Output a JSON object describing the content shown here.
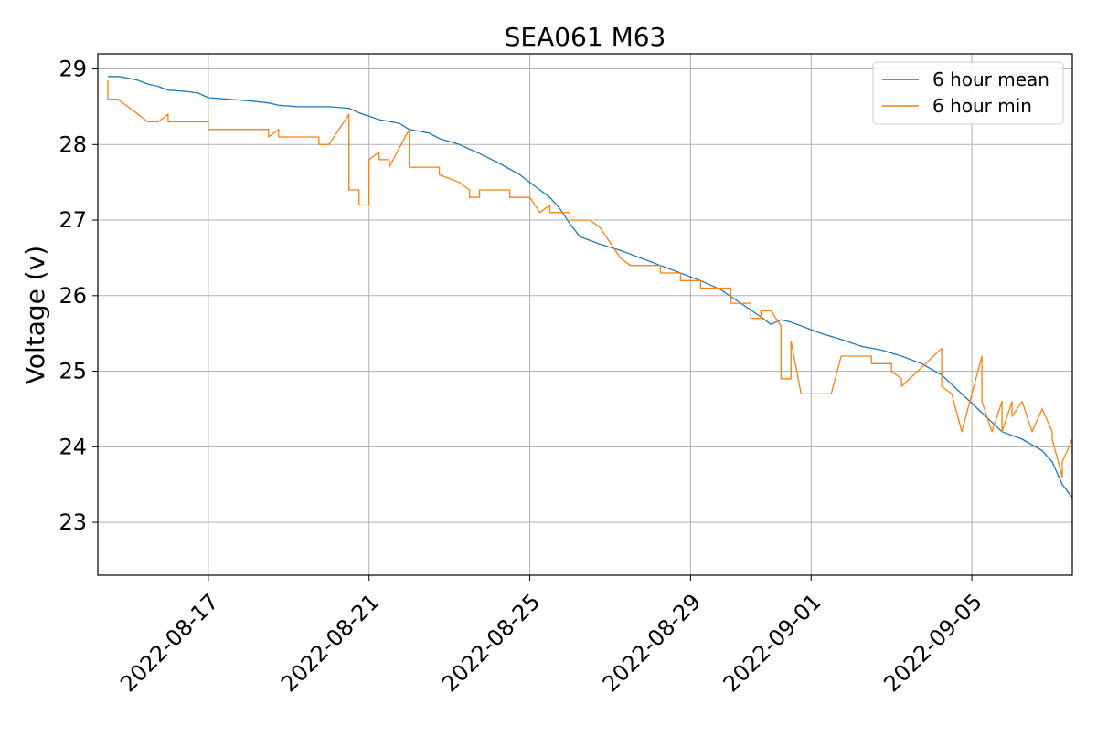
{
  "chart_data": {
    "type": "line",
    "title": "SEA061 M63",
    "xlabel": "",
    "ylabel": "Voltage (v)",
    "x_axis": "date",
    "xlim": [
      "2022-08-14T06:00",
      "2022-09-07T12:00"
    ],
    "ylim": [
      22.3,
      29.2
    ],
    "x_ticks": [
      "2022-08-17",
      "2022-08-21",
      "2022-08-25",
      "2022-08-29",
      "2022-09-01",
      "2022-09-05"
    ],
    "y_ticks": [
      23,
      24,
      25,
      26,
      27,
      28,
      29
    ],
    "grid": true,
    "legend_position": "top-right",
    "series": [
      {
        "name": "6 hour mean",
        "color": "#1f77b4",
        "points": [
          [
            "2022-08-14T12:00",
            28.9
          ],
          [
            "2022-08-14T18:00",
            28.9
          ],
          [
            "2022-08-15T00:00",
            28.88
          ],
          [
            "2022-08-15T06:00",
            28.85
          ],
          [
            "2022-08-15T12:00",
            28.8
          ],
          [
            "2022-08-15T18:00",
            28.77
          ],
          [
            "2022-08-16T00:00",
            28.72
          ],
          [
            "2022-08-16T12:00",
            28.7
          ],
          [
            "2022-08-16T18:00",
            28.68
          ],
          [
            "2022-08-17T00:00",
            28.62
          ],
          [
            "2022-08-17T12:00",
            28.6
          ],
          [
            "2022-08-18T00:00",
            28.58
          ],
          [
            "2022-08-18T12:00",
            28.55
          ],
          [
            "2022-08-18T18:00",
            28.52
          ],
          [
            "2022-08-19T06:00",
            28.5
          ],
          [
            "2022-08-20T00:00",
            28.5
          ],
          [
            "2022-08-20T12:00",
            28.48
          ],
          [
            "2022-08-20T18:00",
            28.42
          ],
          [
            "2022-08-21T06:00",
            28.33
          ],
          [
            "2022-08-21T18:00",
            28.28
          ],
          [
            "2022-08-22T00:00",
            28.2
          ],
          [
            "2022-08-22T12:00",
            28.15
          ],
          [
            "2022-08-22T18:00",
            28.08
          ],
          [
            "2022-08-23T06:00",
            28.0
          ],
          [
            "2022-08-23T18:00",
            27.88
          ],
          [
            "2022-08-24T06:00",
            27.75
          ],
          [
            "2022-08-24T18:00",
            27.6
          ],
          [
            "2022-08-25T06:00",
            27.4
          ],
          [
            "2022-08-25T12:00",
            27.3
          ],
          [
            "2022-08-25T18:00",
            27.15
          ],
          [
            "2022-08-26T00:00",
            26.95
          ],
          [
            "2022-08-26T06:00",
            26.78
          ],
          [
            "2022-08-26T18:00",
            26.68
          ],
          [
            "2022-08-27T06:00",
            26.6
          ],
          [
            "2022-08-27T18:00",
            26.5
          ],
          [
            "2022-08-28T06:00",
            26.4
          ],
          [
            "2022-08-28T18:00",
            26.3
          ],
          [
            "2022-08-29T06:00",
            26.2
          ],
          [
            "2022-08-29T18:00",
            26.08
          ],
          [
            "2022-08-30T06:00",
            25.9
          ],
          [
            "2022-08-30T18:00",
            25.72
          ],
          [
            "2022-08-31T00:00",
            25.62
          ],
          [
            "2022-08-31T06:00",
            25.68
          ],
          [
            "2022-08-31T12:00",
            25.65
          ],
          [
            "2022-08-31T18:00",
            25.6
          ],
          [
            "2022-09-01T06:00",
            25.5
          ],
          [
            "2022-09-01T18:00",
            25.42
          ],
          [
            "2022-09-02T06:00",
            25.33
          ],
          [
            "2022-09-02T18:00",
            25.28
          ],
          [
            "2022-09-03T06:00",
            25.2
          ],
          [
            "2022-09-03T18:00",
            25.1
          ],
          [
            "2022-09-04T06:00",
            24.95
          ],
          [
            "2022-09-04T18:00",
            24.7
          ],
          [
            "2022-09-05T06:00",
            24.45
          ],
          [
            "2022-09-05T18:00",
            24.2
          ],
          [
            "2022-09-06T06:00",
            24.1
          ],
          [
            "2022-09-06T18:00",
            23.95
          ],
          [
            "2022-09-07T00:00",
            23.8
          ],
          [
            "2022-09-07T06:00",
            23.5
          ],
          [
            "2022-09-07T12:00",
            23.33
          ]
        ]
      },
      {
        "name": "6 hour min",
        "color": "#ff7f0e",
        "points": [
          [
            "2022-08-14T12:00",
            28.85
          ],
          [
            "2022-08-14T12:00",
            28.6
          ],
          [
            "2022-08-14T18:00",
            28.6
          ],
          [
            "2022-08-15T00:00",
            28.5
          ],
          [
            "2022-08-15T06:00",
            28.4
          ],
          [
            "2022-08-15T12:00",
            28.3
          ],
          [
            "2022-08-15T18:00",
            28.3
          ],
          [
            "2022-08-16T00:00",
            28.4
          ],
          [
            "2022-08-16T00:00",
            28.3
          ],
          [
            "2022-08-17T00:00",
            28.3
          ],
          [
            "2022-08-17T00:00",
            28.2
          ],
          [
            "2022-08-18T12:00",
            28.2
          ],
          [
            "2022-08-18T12:00",
            28.1
          ],
          [
            "2022-08-18T18:00",
            28.2
          ],
          [
            "2022-08-18T18:00",
            28.1
          ],
          [
            "2022-08-19T18:00",
            28.1
          ],
          [
            "2022-08-19T18:00",
            28.0
          ],
          [
            "2022-08-20T00:00",
            28.0
          ],
          [
            "2022-08-20T12:00",
            28.4
          ],
          [
            "2022-08-20T12:00",
            27.4
          ],
          [
            "2022-08-20T18:00",
            27.4
          ],
          [
            "2022-08-20T18:00",
            27.2
          ],
          [
            "2022-08-21T00:00",
            27.2
          ],
          [
            "2022-08-21T00:00",
            27.8
          ],
          [
            "2022-08-21T06:00",
            27.9
          ],
          [
            "2022-08-21T06:00",
            27.8
          ],
          [
            "2022-08-21T12:00",
            27.8
          ],
          [
            "2022-08-21T12:00",
            27.7
          ],
          [
            "2022-08-22T00:00",
            28.2
          ],
          [
            "2022-08-22T00:00",
            27.7
          ],
          [
            "2022-08-22T18:00",
            27.7
          ],
          [
            "2022-08-22T18:00",
            27.6
          ],
          [
            "2022-08-23T06:00",
            27.5
          ],
          [
            "2022-08-23T12:00",
            27.4
          ],
          [
            "2022-08-23T12:00",
            27.3
          ],
          [
            "2022-08-23T18:00",
            27.3
          ],
          [
            "2022-08-23T18:00",
            27.4
          ],
          [
            "2022-08-24T12:00",
            27.4
          ],
          [
            "2022-08-24T12:00",
            27.3
          ],
          [
            "2022-08-25T00:00",
            27.3
          ],
          [
            "2022-08-25T06:00",
            27.1
          ],
          [
            "2022-08-25T12:00",
            27.2
          ],
          [
            "2022-08-25T12:00",
            27.1
          ],
          [
            "2022-08-26T00:00",
            27.1
          ],
          [
            "2022-08-26T00:00",
            27.0
          ],
          [
            "2022-08-26T12:00",
            27.0
          ],
          [
            "2022-08-26T18:00",
            26.9
          ],
          [
            "2022-08-27T00:00",
            26.7
          ],
          [
            "2022-08-27T06:00",
            26.5
          ],
          [
            "2022-08-27T12:00",
            26.4
          ],
          [
            "2022-08-28T06:00",
            26.4
          ],
          [
            "2022-08-28T06:00",
            26.3
          ],
          [
            "2022-08-28T18:00",
            26.3
          ],
          [
            "2022-08-28T18:00",
            26.2
          ],
          [
            "2022-08-29T06:00",
            26.2
          ],
          [
            "2022-08-29T06:00",
            26.1
          ],
          [
            "2022-08-30T00:00",
            26.1
          ],
          [
            "2022-08-30T00:00",
            25.9
          ],
          [
            "2022-08-30T12:00",
            25.9
          ],
          [
            "2022-08-30T12:00",
            25.7
          ],
          [
            "2022-08-30T18:00",
            25.7
          ],
          [
            "2022-08-30T18:00",
            25.8
          ],
          [
            "2022-08-31T00:00",
            25.8
          ],
          [
            "2022-08-31T06:00",
            25.6
          ],
          [
            "2022-08-31T06:00",
            24.9
          ],
          [
            "2022-08-31T12:00",
            24.9
          ],
          [
            "2022-08-31T12:00",
            25.4
          ],
          [
            "2022-08-31T18:00",
            24.7
          ],
          [
            "2022-09-01T12:00",
            24.7
          ],
          [
            "2022-09-01T18:00",
            25.2
          ],
          [
            "2022-09-02T12:00",
            25.2
          ],
          [
            "2022-09-02T12:00",
            25.1
          ],
          [
            "2022-09-03T00:00",
            25.1
          ],
          [
            "2022-09-03T00:00",
            25.0
          ],
          [
            "2022-09-03T06:00",
            24.9
          ],
          [
            "2022-09-03T06:00",
            24.8
          ],
          [
            "2022-09-04T06:00",
            25.3
          ],
          [
            "2022-09-04T06:00",
            24.8
          ],
          [
            "2022-09-04T12:00",
            24.7
          ],
          [
            "2022-09-04T18:00",
            24.2
          ],
          [
            "2022-09-05T06:00",
            25.2
          ],
          [
            "2022-09-05T06:00",
            24.6
          ],
          [
            "2022-09-05T12:00",
            24.2
          ],
          [
            "2022-09-05T18:00",
            24.6
          ],
          [
            "2022-09-05T18:00",
            24.2
          ],
          [
            "2022-09-06T00:00",
            24.6
          ],
          [
            "2022-09-06T00:00",
            24.4
          ],
          [
            "2022-09-06T06:00",
            24.6
          ],
          [
            "2022-09-06T12:00",
            24.2
          ],
          [
            "2022-09-06T18:00",
            24.5
          ],
          [
            "2022-09-07T00:00",
            24.2
          ],
          [
            "2022-09-07T00:00",
            24.1
          ],
          [
            "2022-09-07T06:00",
            23.6
          ],
          [
            "2022-09-07T06:00",
            23.8
          ],
          [
            "2022-09-07T12:00",
            24.1
          ],
          [
            "2022-09-07T12:00",
            23.1
          ],
          [
            "2022-09-07T12:00",
            22.6
          ],
          [
            "2022-09-07T12:00",
            22.9
          ]
        ]
      }
    ]
  }
}
